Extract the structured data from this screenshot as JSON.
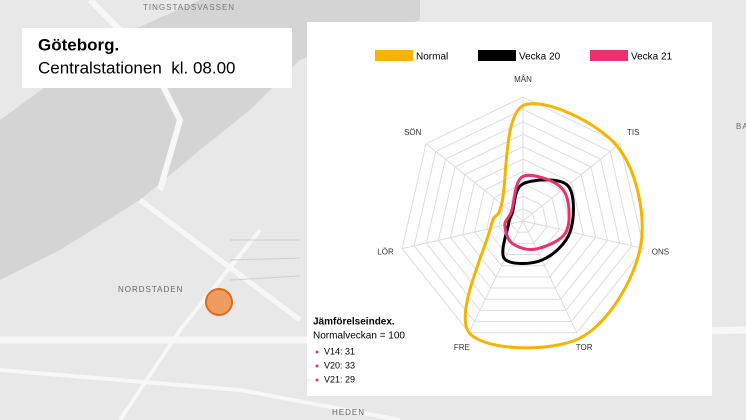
{
  "chart_data": {
    "type": "radar",
    "title": "Göteborg.",
    "subtitle": "Centralstationen  kl. 08.00",
    "categories": [
      "MÅN",
      "TIS",
      "ONS",
      "TOR",
      "FRE",
      "LÖR",
      "SÖN"
    ],
    "series": [
      {
        "name": "Normal",
        "color": "#f5b400",
        "values": [
          93,
          97,
          97,
          105,
          100,
          27,
          22
        ]
      },
      {
        "name": "Vecka 20",
        "color": "#000000",
        "values": [
          30,
          46,
          39,
          35,
          34,
          12,
          11
        ]
      },
      {
        "name": "Vecka 21",
        "color": "#e8336d",
        "values": [
          36,
          41,
          36,
          25,
          20,
          15,
          12
        ]
      }
    ],
    "rlim": [
      0,
      100
    ],
    "rticks": [
      10,
      20,
      30,
      40,
      50,
      60,
      70,
      80,
      90,
      100
    ],
    "grid": true,
    "annotation": {
      "title": "Jämförelseindex.",
      "subtitle": "Normalveckan = 100",
      "items": [
        "V14: 31",
        "V20: 33",
        "V21: 29"
      ]
    }
  },
  "map_labels": [
    "TINGSTADSVASSEN",
    "NORDSTADEN",
    "HEDEN",
    "BA"
  ]
}
